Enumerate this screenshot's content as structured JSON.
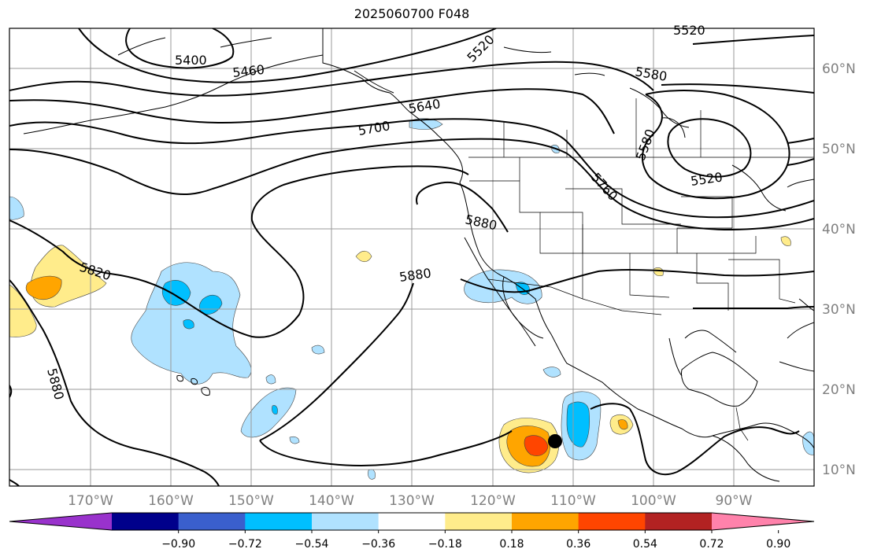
{
  "title": "2025060700 F048",
  "colors": {
    "neg090": "#9932CC",
    "neg072": "#00008B",
    "neg054": "#3A5FCD",
    "neg036": "#00BFFF",
    "neg018": "#B0E2FF",
    "zero": "#FFFFFF",
    "pos018": "#FFEC8B",
    "pos036": "#FFA500",
    "pos054": "#FF4500",
    "pos072": "#B22222",
    "pos090": "#FF82AB",
    "contour": "#000000",
    "coast": "#000000",
    "grid": "#808080"
  },
  "map": {
    "lon_range": [
      "180°W",
      "80°W"
    ],
    "lat_range": [
      "8°N",
      "65°N"
    ],
    "lon_labels": [
      "170°W",
      "160°W",
      "150°W",
      "140°W",
      "130°W",
      "120°W",
      "110°W",
      "100°W",
      "90°W"
    ],
    "lat_labels": [
      "60°N",
      "50°N",
      "40°N",
      "30°N",
      "20°N",
      "10°N"
    ],
    "contour_labels": [
      "5400",
      "5460",
      "5520",
      "5520",
      "5580",
      "5640",
      "5700",
      "5580",
      "5520",
      "5760",
      "5880",
      "5820",
      "5880",
      "5880"
    ],
    "marker": "storm-position-dot"
  },
  "colorbar": {
    "ticks": [
      "−0.90",
      "−0.72",
      "−0.54",
      "−0.36",
      "−0.18",
      "0.18",
      "0.36",
      "0.54",
      "0.72",
      "0.90"
    ],
    "colors": [
      "#9932CC",
      "#00008B",
      "#3A5FCD",
      "#00BFFF",
      "#B0E2FF",
      "#FFFFFF",
      "#FFEC8B",
      "#FFA500",
      "#FF4500",
      "#B22222",
      "#FF82AB"
    ],
    "extend": "both"
  }
}
